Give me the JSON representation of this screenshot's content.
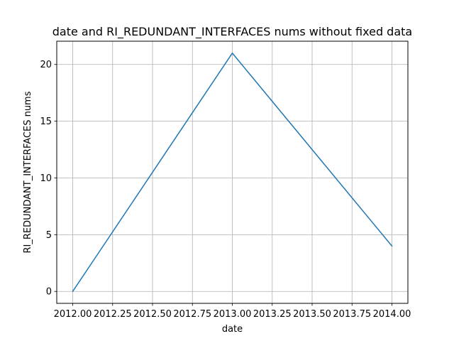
{
  "chart_data": {
    "type": "line",
    "title": "date and RI_REDUNDANT_INTERFACES nums without fixed data",
    "xlabel": "date",
    "ylabel": "RI_REDUNDANT_INTERFACES nums",
    "xlim": [
      2011.9,
      2014.1
    ],
    "ylim": [
      -1.05,
      22.05
    ],
    "x_ticks": [
      2012.0,
      2012.25,
      2012.5,
      2012.75,
      2013.0,
      2013.25,
      2013.5,
      2013.75,
      2014.0
    ],
    "x_tick_labels": [
      "2012.00",
      "2012.25",
      "2012.50",
      "2012.75",
      "2013.00",
      "2013.25",
      "2013.50",
      "2013.75",
      "2014.00"
    ],
    "y_ticks": [
      0,
      5,
      10,
      15,
      20
    ],
    "y_tick_labels": [
      "0",
      "5",
      "10",
      "15",
      "20"
    ],
    "grid": true,
    "series": [
      {
        "x": [
          2012,
          2013,
          2014
        ],
        "values": [
          0,
          21,
          4
        ],
        "color": "#1f77b4"
      }
    ],
    "colors": {
      "line": "#1f77b4",
      "grid": "#b0b0b0",
      "axes": "#000000"
    }
  }
}
